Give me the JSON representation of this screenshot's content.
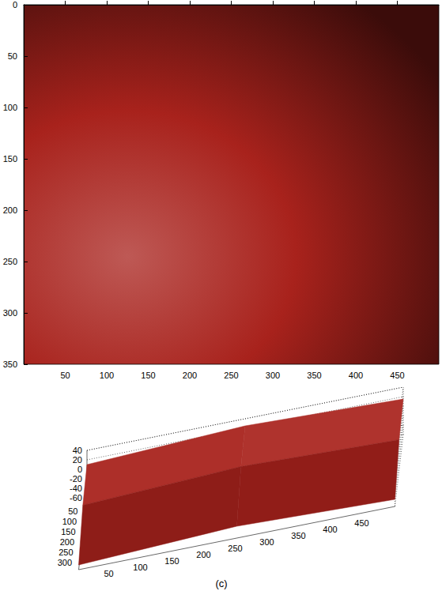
{
  "chart_data": [
    {
      "type": "image",
      "color": "#a8221c",
      "xlim": [
        0,
        500
      ],
      "ylim": [
        0,
        350
      ],
      "xticks": [
        50,
        100,
        150,
        200,
        250,
        300,
        350,
        400,
        450
      ],
      "yticks": [
        0,
        50,
        100,
        150,
        200,
        250,
        300,
        350
      ]
    },
    {
      "type": "surface",
      "color": "#a8221c",
      "title": "(c)",
      "x": [
        0,
        250,
        500
      ],
      "y": [
        0,
        175,
        350
      ],
      "z": [
        [
          10,
          25,
          15
        ],
        [
          0,
          15,
          5
        ],
        [
          -50,
          -35,
          -45
        ]
      ],
      "xlim": [
        0,
        500
      ],
      "ylim": [
        0,
        350
      ],
      "zlim": [
        -60,
        40
      ],
      "xticks": [
        50,
        100,
        150,
        200,
        250,
        300,
        350,
        400,
        450
      ],
      "yticks": [
        50,
        100,
        150,
        200,
        250,
        300
      ],
      "zticks": [
        -60,
        -40,
        -20,
        0,
        20,
        40
      ]
    }
  ]
}
